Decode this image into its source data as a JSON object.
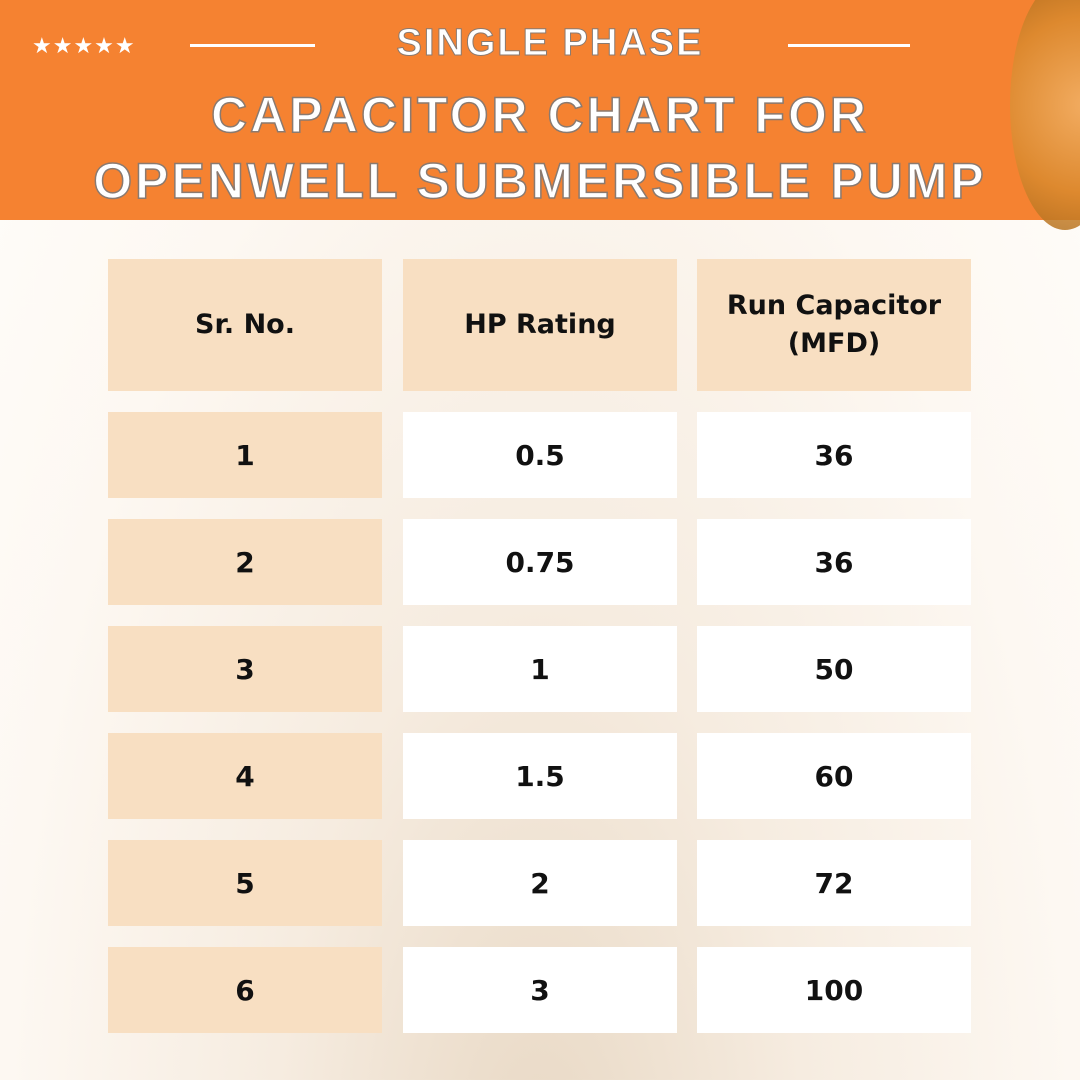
{
  "header": {
    "rating_stars": 5,
    "subtitle": "SINGLE PHASE",
    "title_line1": "CAPACITOR CHART FOR",
    "title_line2": "OPENWELL SUBMERSIBLE PUMP",
    "accent_color": "#f58231"
  },
  "table": {
    "columns": [
      "Sr. No.",
      "HP Rating",
      "Run Capacitor (MFD)"
    ],
    "rows": [
      [
        "1",
        "0.5",
        "36"
      ],
      [
        "2",
        "0.75",
        "36"
      ],
      [
        "3",
        "1",
        "50"
      ],
      [
        "4",
        "1.5",
        "60"
      ],
      [
        "5",
        "2",
        "72"
      ],
      [
        "6",
        "3",
        "100"
      ]
    ]
  }
}
